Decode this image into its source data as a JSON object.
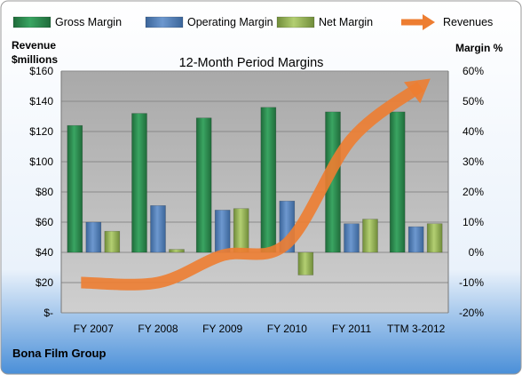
{
  "chart_data": {
    "type": "bar",
    "title": "12-Month Period Margins",
    "company": "Bona Film Group",
    "left_axis_title": [
      "Revenue",
      "$millions"
    ],
    "right_axis_title": "Margin %",
    "categories": [
      "FY 2007",
      "FY 2008",
      "FY 2009",
      "FY 2010",
      "FY 2011",
      "TTM 3-2012"
    ],
    "left_axis": {
      "ylim": [
        0,
        160
      ],
      "ticks": [
        0,
        20,
        40,
        60,
        80,
        100,
        120,
        140,
        160
      ],
      "tick_labels": [
        "$-",
        "$20",
        "$40",
        "$60",
        "$80",
        "$100",
        "$120",
        "$140",
        "$160"
      ]
    },
    "right_axis": {
      "ylim": [
        -20,
        60
      ],
      "ticks": [
        -20,
        -10,
        0,
        10,
        20,
        30,
        40,
        50,
        60
      ],
      "tick_labels": [
        "-20%",
        "-10%",
        "0%",
        "10%",
        "20%",
        "30%",
        "40%",
        "50%",
        "60%"
      ]
    },
    "grid": true,
    "legend_position": "top",
    "series": [
      {
        "name": "Gross Margin",
        "kind": "bar",
        "axis": "right",
        "color": "#2E8B4E",
        "values": [
          42,
          46,
          44.5,
          48,
          46.5,
          46.5
        ]
      },
      {
        "name": "Operating Margin",
        "kind": "bar",
        "axis": "right",
        "color": "#4F81BD",
        "values": [
          10,
          15.5,
          14,
          17,
          9.5,
          8.5
        ]
      },
      {
        "name": "Net Margin",
        "kind": "bar",
        "axis": "right",
        "color": "#9BBB59",
        "values": [
          7,
          1,
          14.5,
          -7.5,
          11,
          9.5
        ]
      },
      {
        "name": "Revenues",
        "kind": "arrow",
        "axis": "left",
        "color": "#ED7D31",
        "values": [
          20,
          20,
          38,
          46,
          115,
          150
        ]
      }
    ]
  }
}
